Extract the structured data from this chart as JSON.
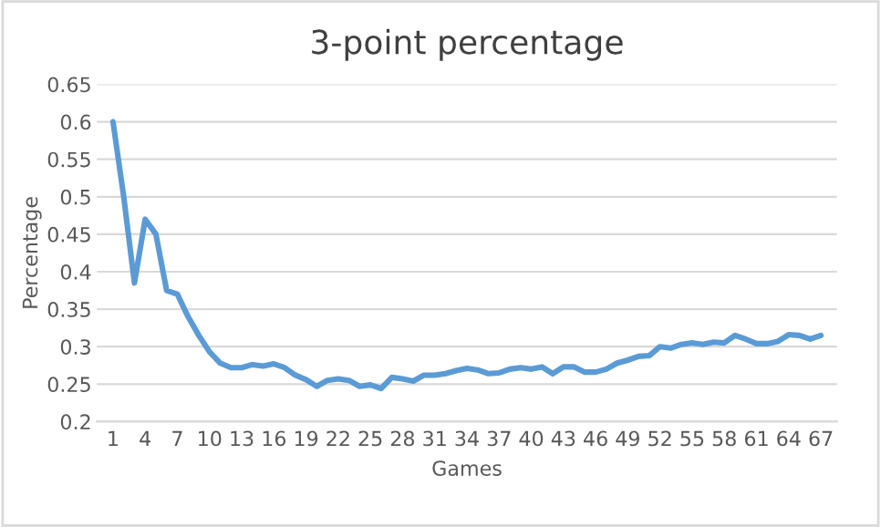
{
  "chart_data": {
    "type": "line",
    "title": "3-point percentage",
    "xlabel": "Games",
    "ylabel": "Percentage",
    "categories": [
      "1",
      null,
      null,
      "4",
      null,
      null,
      "7",
      null,
      null,
      "10",
      null,
      null,
      "13",
      null,
      null,
      "16",
      null,
      null,
      "19",
      null,
      null,
      "22",
      null,
      null,
      "25",
      null,
      null,
      "28",
      null,
      null,
      "31",
      null,
      null,
      "34",
      null,
      null,
      "37",
      null,
      null,
      "40",
      null,
      null,
      "43",
      null,
      null,
      "46",
      null,
      null,
      "49",
      null,
      null,
      "52",
      null,
      null,
      "55",
      null,
      null,
      "58",
      null,
      null,
      "61",
      null,
      null,
      "64",
      null,
      null,
      "67"
    ],
    "series": [
      {
        "color": "#5b9bd5",
        "values": [
          0.6,
          0.5,
          0.385,
          0.47,
          0.45,
          0.375,
          0.37,
          0.34,
          0.315,
          0.293,
          0.278,
          0.272,
          0.272,
          0.276,
          0.274,
          0.277,
          0.272,
          0.262,
          0.256,
          0.247,
          0.255,
          0.257,
          0.255,
          0.247,
          0.249,
          0.244,
          0.259,
          0.257,
          0.254,
          0.262,
          0.262,
          0.264,
          0.268,
          0.271,
          0.269,
          0.264,
          0.265,
          0.27,
          0.272,
          0.27,
          0.273,
          0.264,
          0.273,
          0.273,
          0.266,
          0.266,
          0.27,
          0.278,
          0.282,
          0.287,
          0.288,
          0.3,
          0.298,
          0.303,
          0.305,
          0.303,
          0.306,
          0.305,
          0.315,
          0.31,
          0.304,
          0.304,
          0.307,
          0.316,
          0.315,
          0.31,
          0.315
        ]
      }
    ],
    "ylim": [
      0.2,
      0.65
    ],
    "yticks": [
      0.2,
      0.25,
      0.3,
      0.35,
      0.4,
      0.45,
      0.5,
      0.55,
      0.6,
      0.65
    ],
    "grid": "y",
    "legend": false,
    "marker": "none",
    "line_style": "solid"
  }
}
